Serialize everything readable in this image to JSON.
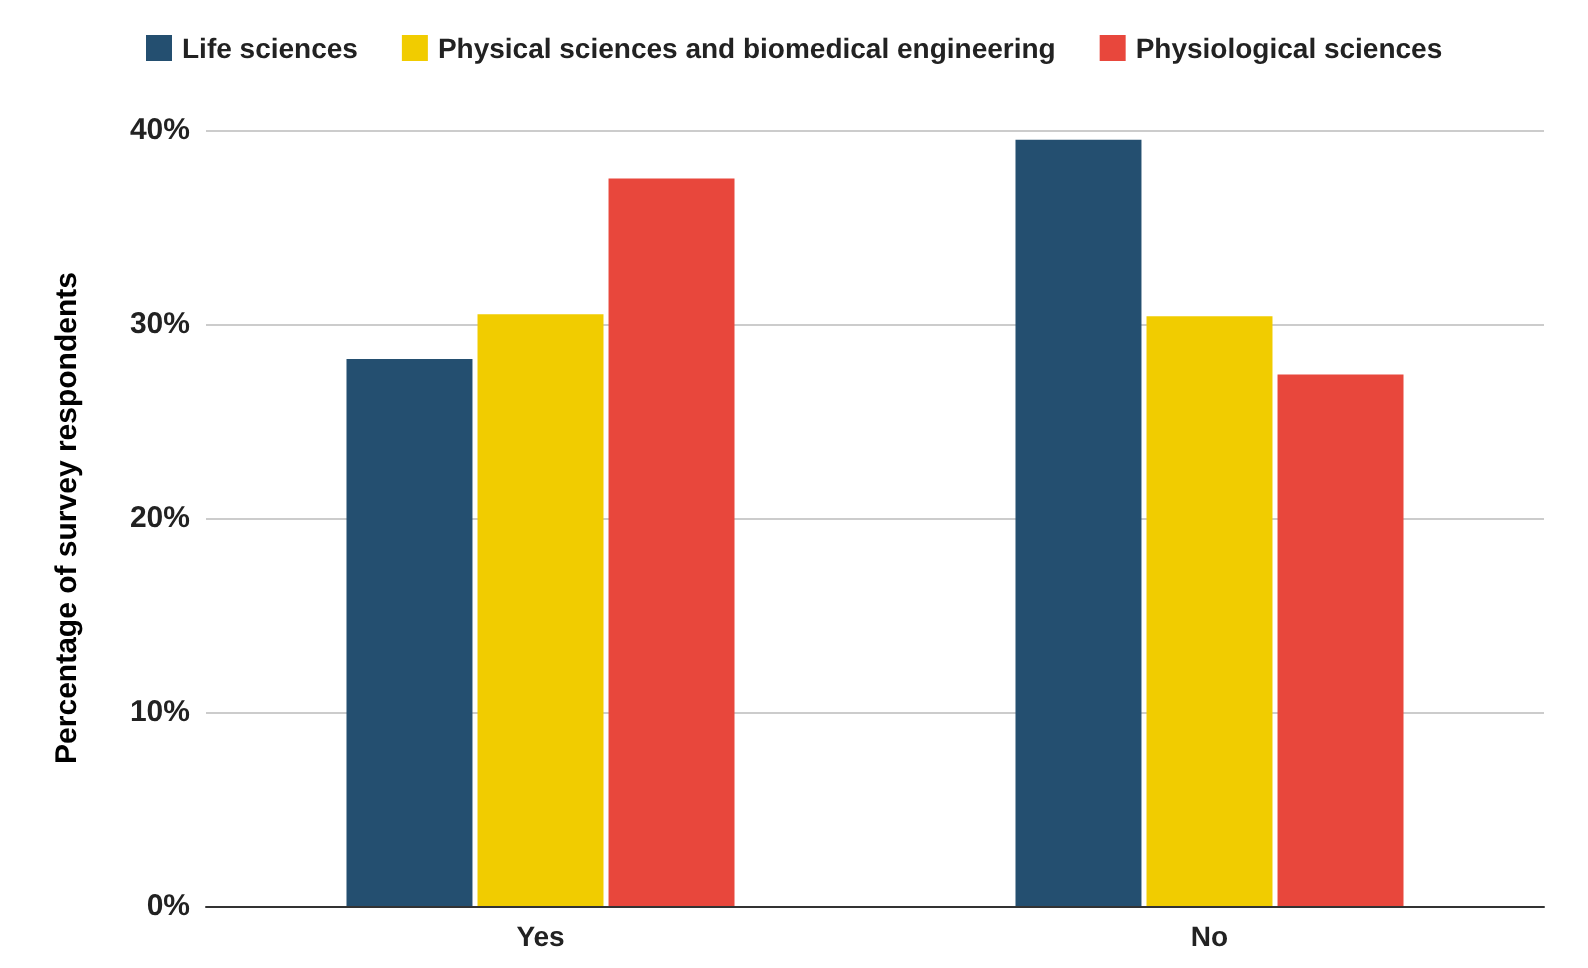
{
  "chart_data": {
    "type": "bar",
    "ylabel": "Percentage of survey respondents",
    "categories": [
      "Yes",
      "No"
    ],
    "series": [
      {
        "name": "Life sciences",
        "color": "#244f70",
        "values": [
          28.2,
          39.5
        ]
      },
      {
        "name": "Physical sciences and biomedical engineering",
        "color": "#f1cc00",
        "values": [
          30.5,
          30.4
        ]
      },
      {
        "name": "Physiological sciences",
        "color": "#e8473c",
        "values": [
          37.5,
          27.4
        ]
      }
    ],
    "ylim": [
      0,
      40
    ],
    "yticks": [
      {
        "value": 0,
        "label": "0%"
      },
      {
        "value": 10,
        "label": "10%"
      },
      {
        "value": 20,
        "label": "20%"
      },
      {
        "value": 30,
        "label": "30%"
      },
      {
        "value": 40,
        "label": "40%"
      }
    ],
    "grid": "y",
    "legend": "top left"
  }
}
